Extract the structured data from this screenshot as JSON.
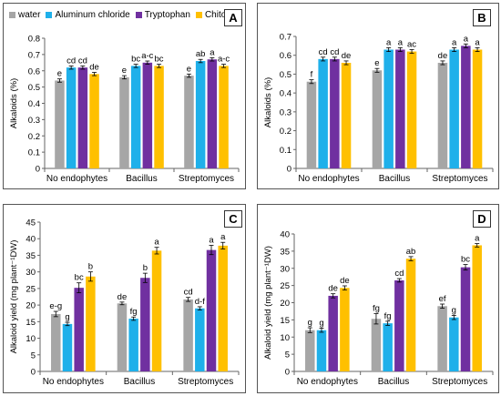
{
  "legend": [
    {
      "name": "water",
      "color": "#a6a6a6"
    },
    {
      "name": "Aluminum chloride",
      "color": "#1fb0ea"
    },
    {
      "name": "Tryptophan",
      "color": "#7030a0"
    },
    {
      "name": "Chitosan",
      "color": "#ffc000"
    }
  ],
  "chart_data": [
    {
      "type": "bar",
      "panel_label": "A",
      "ylabel": "Alkaloids (%)",
      "categories": [
        "No endophytes",
        "Bacillus",
        "Streptomyces"
      ],
      "ylim": [
        0,
        0.8
      ],
      "yticks": [
        "0",
        "0.1",
        "0.2",
        "0.3",
        "0.4",
        "0.5",
        "0.6",
        "0.7",
        "0.8"
      ],
      "series": [
        {
          "name": "water",
          "values": [
            0.54,
            0.56,
            0.57
          ],
          "errors": [
            0.01,
            0.01,
            0.01
          ],
          "letters": [
            "e",
            "e",
            "e"
          ]
        },
        {
          "name": "Aluminum chloride",
          "values": [
            0.62,
            0.63,
            0.66
          ],
          "errors": [
            0.01,
            0.01,
            0.01
          ],
          "letters": [
            "cd",
            "bc",
            "ab"
          ]
        },
        {
          "name": "Tryptophan",
          "values": [
            0.62,
            0.65,
            0.67
          ],
          "errors": [
            0.01,
            0.01,
            0.01
          ],
          "letters": [
            "cd",
            "a-c",
            "a"
          ]
        },
        {
          "name": "Chitosan",
          "values": [
            0.58,
            0.63,
            0.63
          ],
          "errors": [
            0.01,
            0.01,
            0.01
          ],
          "letters": [
            "de",
            "bc",
            "a-c"
          ]
        }
      ]
    },
    {
      "type": "bar",
      "panel_label": "B",
      "ylabel": "Alkaloids (%)",
      "categories": [
        "No endophytes",
        "Bacillus",
        "Streptomyces"
      ],
      "ylim": [
        0,
        0.7
      ],
      "yticks": [
        "0",
        "0.1",
        "0.2",
        "0.3",
        "0.4",
        "0.5",
        "0.6",
        "0.7"
      ],
      "series": [
        {
          "name": "water",
          "values": [
            0.46,
            0.52,
            0.56
          ],
          "errors": [
            0.01,
            0.01,
            0.01
          ],
          "letters": [
            "f",
            "e",
            "de"
          ]
        },
        {
          "name": "Aluminum chloride",
          "values": [
            0.58,
            0.63,
            0.63
          ],
          "errors": [
            0.01,
            0.01,
            0.01
          ],
          "letters": [
            "cd",
            "a",
            "a"
          ]
        },
        {
          "name": "Tryptophan",
          "values": [
            0.58,
            0.63,
            0.65
          ],
          "errors": [
            0.01,
            0.01,
            0.01
          ],
          "letters": [
            "cd",
            "a",
            "a"
          ]
        },
        {
          "name": "Chitosan",
          "values": [
            0.56,
            0.62,
            0.63
          ],
          "errors": [
            0.01,
            0.01,
            0.01
          ],
          "letters": [
            "de",
            "ac",
            "a"
          ]
        }
      ]
    },
    {
      "type": "bar",
      "panel_label": "C",
      "ylabel": "Alkaloid yield (mg plant⁻¹DW)",
      "categories": [
        "No endophytes",
        "Bacillus",
        "Streptomyces"
      ],
      "ylim": [
        0,
        45
      ],
      "yticks": [
        "0",
        "5",
        "10",
        "15",
        "20",
        "25",
        "30",
        "35",
        "40",
        "45"
      ],
      "series": [
        {
          "name": "water",
          "values": [
            17.3,
            20.5,
            21.7
          ],
          "errors": [
            0.8,
            0.4,
            0.6
          ],
          "letters": [
            "e-g",
            "de",
            "cd"
          ]
        },
        {
          "name": "Aluminum chloride",
          "values": [
            14.3,
            15.9,
            19.0
          ],
          "errors": [
            0.5,
            0.5,
            0.5
          ],
          "letters": [
            "g",
            "fg",
            "d-f"
          ]
        },
        {
          "name": "Tryptophan",
          "values": [
            25.2,
            28.2,
            36.6
          ],
          "errors": [
            1.5,
            1.4,
            1.4
          ],
          "letters": [
            "bc",
            "b",
            "a"
          ]
        },
        {
          "name": "Chitosan",
          "values": [
            28.6,
            36.4,
            37.9
          ],
          "errors": [
            1.4,
            1.0,
            1.0
          ],
          "letters": [
            "b",
            "a",
            "a"
          ]
        }
      ]
    },
    {
      "type": "bar",
      "panel_label": "D",
      "ylabel": "Alkaloid yield (mg plant⁻¹DW)",
      "categories": [
        "No endophytes",
        "Bacillus",
        "Streptomyces"
      ],
      "ylim": [
        0,
        40
      ],
      "yticks": [
        "0",
        "5",
        "10",
        "15",
        "20",
        "25",
        "30",
        "35",
        "40"
      ],
      "series": [
        {
          "name": "water",
          "values": [
            12.0,
            15.3,
            19.0
          ],
          "errors": [
            0.7,
            1.5,
            0.6
          ],
          "letters": [
            "g",
            "fg",
            "ef"
          ]
        },
        {
          "name": "Aluminum chloride",
          "values": [
            12.0,
            14.0,
            15.7
          ],
          "errors": [
            0.6,
            0.6,
            0.6
          ],
          "letters": [
            "g",
            "fg",
            "g"
          ]
        },
        {
          "name": "Tryptophan",
          "values": [
            22.0,
            26.5,
            30.3
          ],
          "errors": [
            0.6,
            0.5,
            0.8
          ],
          "letters": [
            "de",
            "cd",
            "bc"
          ]
        },
        {
          "name": "Chitosan",
          "values": [
            24.3,
            32.8,
            36.7
          ],
          "errors": [
            0.6,
            0.6,
            0.5
          ],
          "letters": [
            "de",
            "ab",
            "a"
          ]
        }
      ]
    }
  ]
}
